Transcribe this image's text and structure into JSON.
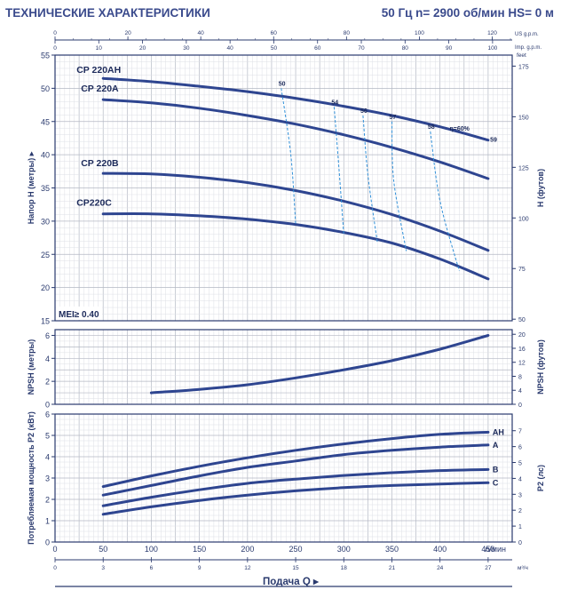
{
  "header": {
    "title": "ТЕХНИЧЕСКИЕ ХАРАКТЕРИСТИКИ",
    "specs": "50 Гц    n= 2900 об/мин    HS= 0 м"
  },
  "chart_data": [
    {
      "type": "line",
      "panel": "head",
      "ylabel": "Напор H (метры)",
      "y2label": "H (футов)",
      "x_unit": "л/мин",
      "xlim": [
        0,
        475
      ],
      "ylim": [
        15,
        55
      ],
      "yticks": [
        15,
        20,
        25,
        30,
        35,
        40,
        45,
        50,
        55
      ],
      "y2_unit": "feet",
      "y2ticks": [
        50,
        75,
        100,
        125,
        150,
        175
      ],
      "series": [
        {
          "name": "CP 220AH",
          "x": [
            50,
            100,
            150,
            200,
            250,
            300,
            350,
            400,
            450
          ],
          "y": [
            51.5,
            51.0,
            50.3,
            49.5,
            48.5,
            47.3,
            45.9,
            44.2,
            42.2
          ]
        },
        {
          "name": "CP 220A",
          "x": [
            50,
            100,
            150,
            200,
            250,
            300,
            350,
            400,
            450
          ],
          "y": [
            48.3,
            47.8,
            47.0,
            45.9,
            44.6,
            43.0,
            41.1,
            38.9,
            36.4
          ]
        },
        {
          "name": "CP 220B",
          "x": [
            50,
            100,
            150,
            200,
            250,
            300,
            350,
            400,
            450
          ],
          "y": [
            37.2,
            37.1,
            36.6,
            35.8,
            34.6,
            33.0,
            31.0,
            28.5,
            25.6
          ]
        },
        {
          "name": "CP220C",
          "x": [
            50,
            100,
            150,
            200,
            250,
            300,
            350,
            400,
            450
          ],
          "y": [
            31.1,
            31.1,
            30.8,
            30.3,
            29.5,
            28.3,
            26.7,
            24.3,
            21.3
          ]
        }
      ],
      "efficiency_curves": [
        {
          "label": "50",
          "x": [
            235,
            245,
            250
          ],
          "y": [
            50.0,
            40.0,
            29.5
          ]
        },
        {
          "label": "54",
          "x": [
            290,
            295,
            300
          ],
          "y": [
            47.2,
            38.0,
            28.0
          ]
        },
        {
          "label": "56",
          "x": [
            320,
            325,
            335
          ],
          "y": [
            45.9,
            37.0,
            26.7
          ]
        },
        {
          "label": "57",
          "x": [
            350,
            352,
            365
          ],
          "y": [
            45.0,
            36.0,
            25.5
          ]
        },
        {
          "label": "58",
          "x": [
            390,
            400,
            420
          ],
          "y": [
            43.5,
            33.0,
            22.5
          ]
        }
      ],
      "eta_label": "η=60%",
      "last_label": "59",
      "mei": "MEI≥ 0.40"
    },
    {
      "type": "line",
      "panel": "npsh",
      "ylabel": "NPSH (метры)",
      "y2label": "NPSH (футов)",
      "ylim": [
        0,
        6.5
      ],
      "yticks": [
        0,
        2,
        4,
        6
      ],
      "y2ticks": [
        0,
        4,
        8,
        12,
        16,
        20
      ],
      "series": [
        {
          "name": "NPSH",
          "x": [
            100,
            150,
            200,
            250,
            300,
            350,
            400,
            450
          ],
          "y": [
            1.0,
            1.3,
            1.7,
            2.3,
            3.0,
            3.8,
            4.8,
            6.0
          ]
        }
      ]
    },
    {
      "type": "line",
      "panel": "power",
      "ylabel": "Потребляемая мощность P2 (кВт)",
      "y2label": "P2 (лс)",
      "ylim": [
        0,
        6
      ],
      "yticks": [
        0,
        1,
        2,
        3,
        4,
        5,
        6
      ],
      "y2ticks": [
        0,
        1,
        2,
        3,
        4,
        5,
        6,
        7
      ],
      "series": [
        {
          "name": "AH",
          "x": [
            50,
            100,
            150,
            200,
            250,
            300,
            350,
            400,
            450
          ],
          "y": [
            2.6,
            3.1,
            3.55,
            3.95,
            4.3,
            4.6,
            4.85,
            5.05,
            5.15
          ]
        },
        {
          "name": "A",
          "x": [
            50,
            100,
            150,
            200,
            250,
            300,
            350,
            400,
            450
          ],
          "y": [
            2.2,
            2.65,
            3.1,
            3.5,
            3.8,
            4.1,
            4.3,
            4.45,
            4.55
          ]
        },
        {
          "name": "B",
          "x": [
            50,
            100,
            150,
            200,
            250,
            300,
            350,
            400,
            450
          ],
          "y": [
            1.7,
            2.1,
            2.45,
            2.75,
            2.95,
            3.12,
            3.25,
            3.35,
            3.4
          ]
        },
        {
          "name": "C",
          "x": [
            50,
            100,
            150,
            200,
            250,
            300,
            350,
            400,
            450
          ],
          "y": [
            1.3,
            1.65,
            1.95,
            2.2,
            2.4,
            2.55,
            2.65,
            2.72,
            2.78
          ]
        }
      ]
    }
  ],
  "axes": {
    "top_gpm_ticks": [
      "0",
      "20",
      "40",
      "60",
      "80",
      "100",
      "120"
    ],
    "top_gpm_unit": "US g.p.m.",
    "top_impgpm_ticks": [
      "0",
      "10",
      "20",
      "30",
      "40",
      "50",
      "60",
      "70",
      "80",
      "90",
      "100"
    ],
    "top_impgpm_unit": "Imp. g.p.m.",
    "bottom_lmin_ticks": [
      "0",
      "50",
      "100",
      "150",
      "200",
      "250",
      "300",
      "350",
      "400",
      "450"
    ],
    "bottom_lmin_unit": "л/мин",
    "bottom_m3h_ticks": [
      "0",
      "3",
      "6",
      "9",
      "12",
      "15",
      "18",
      "21",
      "24",
      "27"
    ],
    "bottom_m3h_unit": "м³/ч",
    "x_name": "Подача Q"
  },
  "colors": {
    "curve": "#2e4590",
    "frame": "#2a3a6e",
    "grid_major": "#b4b8c4",
    "grid_minor": "#dddfe6",
    "efficiency": "#2f8fd8"
  }
}
